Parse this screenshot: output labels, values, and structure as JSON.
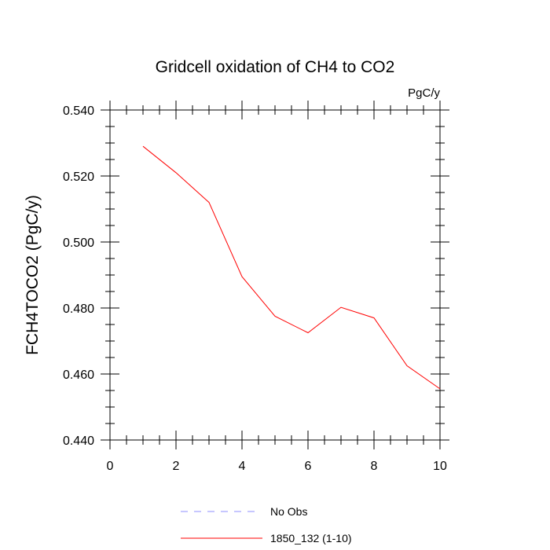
{
  "chart_data": {
    "type": "line",
    "title": "Gridcell oxidation of CH4 to CO2",
    "units": "PgC/y",
    "xlabel": "",
    "ylabel": "FCH4TOCO2  (PgC/y)",
    "xlim": [
      0,
      10
    ],
    "ylim": [
      0.44,
      0.54
    ],
    "x_ticks": [
      0,
      2,
      4,
      6,
      8,
      10
    ],
    "x_tick_labels": [
      "0",
      "2",
      "4",
      "6",
      "8",
      "10"
    ],
    "y_ticks": [
      0.44,
      0.46,
      0.48,
      0.5,
      0.52,
      0.54
    ],
    "y_tick_labels": [
      "0.440",
      "0.460",
      "0.480",
      "0.500",
      "0.520",
      "0.540"
    ],
    "x_minor_step": 0.5,
    "y_minor_step": 0.005,
    "grid": false,
    "legend_position": "bottom",
    "series": [
      {
        "name": "No Obs",
        "style": "dashed",
        "color": "#8f8fff",
        "x": [],
        "values": []
      },
      {
        "name": "1850_132 (1-10)",
        "style": "solid",
        "color": "#ff0000",
        "x": [
          1,
          2,
          3,
          4,
          5,
          6,
          7,
          8,
          9,
          10
        ],
        "values": [
          0.529,
          0.521,
          0.512,
          0.4895,
          0.4775,
          0.4725,
          0.4802,
          0.477,
          0.4625,
          0.4555
        ]
      }
    ]
  }
}
